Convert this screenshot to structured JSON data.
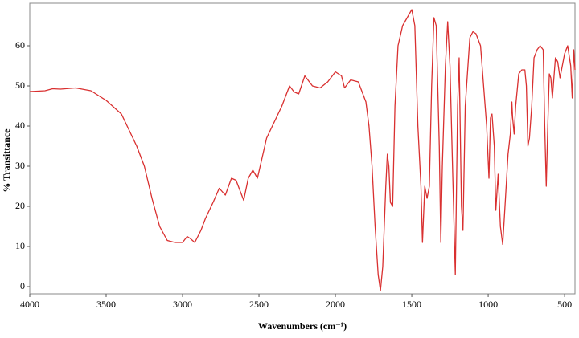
{
  "chart_data": {
    "type": "line",
    "xlabel": "Wavenumbers (cm⁻¹)",
    "ylabel": "% Transittance",
    "xlim": [
      4000,
      432
    ],
    "ylim": [
      -1.8,
      70.6
    ],
    "xticks": [
      4000,
      3500,
      3000,
      2500,
      2000,
      1500,
      1000,
      500
    ],
    "yticks": [
      0,
      10,
      20,
      30,
      40,
      50,
      60
    ],
    "grid": false,
    "series": [
      {
        "color": "#d93030",
        "x": [
          4000,
          3900,
          3850,
          3800,
          3700,
          3600,
          3500,
          3400,
          3300,
          3250,
          3200,
          3150,
          3100,
          3050,
          3000,
          2970,
          2950,
          2920,
          2880,
          2850,
          2800,
          2760,
          2720,
          2680,
          2650,
          2600,
          2570,
          2540,
          2510,
          2450,
          2400,
          2350,
          2320,
          2300,
          2270,
          2240,
          2200,
          2150,
          2100,
          2050,
          2000,
          1960,
          1940,
          1900,
          1850,
          1800,
          1780,
          1760,
          1740,
          1720,
          1705,
          1690,
          1670,
          1660,
          1650,
          1640,
          1625,
          1610,
          1590,
          1560,
          1530,
          1500,
          1480,
          1460,
          1440,
          1430,
          1415,
          1400,
          1385,
          1370,
          1355,
          1340,
          1320,
          1310,
          1300,
          1280,
          1265,
          1250,
          1230,
          1215,
          1200,
          1190,
          1175,
          1165,
          1150,
          1120,
          1100,
          1080,
          1050,
          1030,
          1010,
          995,
          985,
          975,
          960,
          950,
          935,
          920,
          905,
          890,
          870,
          855,
          845,
          840,
          830,
          820,
          800,
          780,
          760,
          750,
          740,
          730,
          715,
          700,
          680,
          660,
          640,
          630,
          620,
          610,
          600,
          590,
          580,
          560,
          545,
          530,
          500,
          480,
          460,
          450,
          440,
          432
        ],
        "values": [
          48.6,
          48.8,
          49.3,
          49.2,
          49.5,
          48.8,
          46.4,
          43,
          35,
          30,
          22,
          15,
          11.5,
          11,
          11,
          12.5,
          12,
          11,
          14,
          17,
          21,
          24.5,
          22.8,
          27,
          26.5,
          21.5,
          27,
          29,
          27,
          37,
          41,
          45,
          48,
          50,
          48.5,
          48,
          52.5,
          50,
          49.5,
          51,
          53.5,
          52.5,
          49.5,
          51.5,
          51,
          46,
          40,
          30,
          15,
          3,
          -1,
          5,
          25,
          33,
          30,
          21,
          20,
          45,
          60,
          65,
          67,
          69,
          65,
          40,
          25,
          11,
          25,
          22,
          25,
          50,
          67,
          65,
          35,
          11,
          30,
          55,
          66,
          55,
          25,
          3,
          45,
          57,
          20,
          14,
          45,
          62,
          63.5,
          63,
          60,
          50,
          40,
          27,
          42,
          43,
          35,
          19,
          28,
          15,
          10.5,
          20,
          33,
          38,
          46,
          42,
          38,
          45,
          53,
          54,
          54,
          50,
          35,
          37,
          45,
          57,
          59,
          60,
          59,
          40,
          25,
          40,
          53,
          52,
          47,
          57,
          56,
          52,
          58,
          60,
          55,
          47,
          59,
          54
        ]
      }
    ]
  }
}
